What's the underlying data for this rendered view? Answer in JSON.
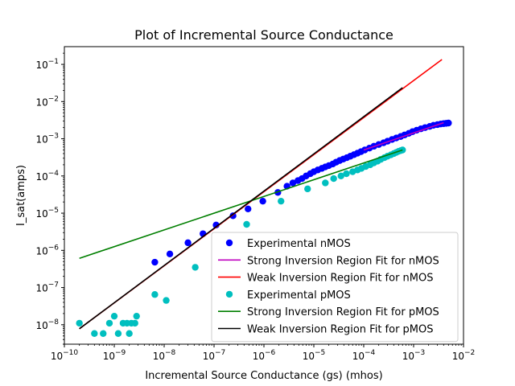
{
  "chart_data": {
    "type": "scatter",
    "title": "Plot of Incremental Source Conductance",
    "xlabel": "Incremental Source Conductance (gs) (mhos)",
    "ylabel": "I_sat(amps)",
    "xscale": "log",
    "yscale": "log",
    "xlim": [
      1e-10,
      0.01
    ],
    "ylim": [
      3e-09,
      0.3
    ],
    "x_tick_labels": [
      "10^-10",
      "10^-9",
      "10^-8",
      "10^-7",
      "10^-6",
      "10^-5",
      "10^-4",
      "10^-3",
      "10^-2"
    ],
    "y_tick_labels": [
      "10^-8",
      "10^-7",
      "10^-6",
      "10^-5",
      "10^-4",
      "10^-3",
      "10^-2",
      "10^-1"
    ],
    "grid": false,
    "legend_position": "lower-right",
    "series": [
      {
        "name": "Experimental nMOS",
        "kind": "scatter",
        "color": "#0000ff",
        "x": [
          6.5e-09,
          1.3e-08,
          3e-08,
          6e-08,
          1.1e-07,
          2.4e-07,
          4.8e-07,
          9.5e-07,
          1.9e-06,
          2.9e-06,
          3.8e-06,
          4.8e-06,
          5.8e-06,
          7e-06,
          8.5e-06,
          1e-05,
          1.2e-05,
          1.45e-05,
          1.7e-05,
          2e-05,
          2.4e-05,
          2.8e-05,
          3.3e-05,
          3.9e-05,
          4.6e-05,
          5.4e-05,
          6.4e-05,
          7.5e-05,
          8.8e-05,
          0.000105,
          0.00013,
          0.00016,
          0.0002,
          0.00025,
          0.0003,
          0.00037,
          0.00045,
          0.00055,
          0.00066,
          0.0008,
          0.00095,
          0.00115,
          0.0014,
          0.0017,
          0.0021,
          0.0025,
          0.003,
          0.0035,
          0.004,
          0.0045,
          0.005
        ],
        "y": [
          4.8e-07,
          8e-07,
          1.6e-06,
          2.8e-06,
          4.8e-06,
          8.5e-06,
          1.3e-05,
          2.1e-05,
          3.6e-05,
          5.3e-05,
          6.5e-05,
          7.5e-05,
          8.5e-05,
          0.0001,
          0.000115,
          0.00013,
          0.000145,
          0.00016,
          0.000175,
          0.00019,
          0.00021,
          0.000235,
          0.00026,
          0.000285,
          0.00031,
          0.00034,
          0.000375,
          0.00041,
          0.00045,
          0.0005,
          0.00056,
          0.00063,
          0.0007,
          0.00078,
          0.00086,
          0.00096,
          0.00105,
          0.00115,
          0.00127,
          0.0014,
          0.00155,
          0.0017,
          0.00185,
          0.002,
          0.00215,
          0.0023,
          0.0024,
          0.0025,
          0.00255,
          0.0026,
          0.00265
        ]
      },
      {
        "name": "Strong Inversion Region Fit for nMOS",
        "kind": "line",
        "color": "#bf00bf",
        "x": [
          0.0001,
          0.004
        ],
        "y": [
          0.0005,
          0.0027
        ]
      },
      {
        "name": "Weak Inversion Region Fit for nMOS",
        "kind": "line",
        "color": "#ff0000",
        "x": [
          2e-10,
          0.0037
        ],
        "y": [
          7.8e-09,
          0.135
        ]
      },
      {
        "name": "Experimental pMOS",
        "kind": "scatter",
        "color": "#00bfbf",
        "x": [
          2e-10,
          4e-10,
          6e-10,
          8e-10,
          1e-09,
          1.2e-09,
          1.5e-09,
          1.8e-09,
          2e-09,
          2.2e-09,
          2.6e-09,
          2.8e-09,
          6.5e-09,
          1.1e-08,
          4.2e-08,
          4.5e-07,
          2.2e-06,
          7.5e-06,
          1.7e-05,
          2.5e-05,
          3.5e-05,
          4.5e-05,
          6e-05,
          7.5e-05,
          9e-05,
          0.00011,
          0.000135,
          0.00016,
          0.00019,
          0.00022,
          0.00026,
          0.0003,
          0.00035,
          0.0004,
          0.00045,
          0.0005,
          0.00055,
          0.0006
        ],
        "y": [
          1.1e-08,
          5.8e-09,
          5.8e-09,
          1.1e-08,
          1.7e-08,
          5.8e-09,
          1.1e-08,
          1.1e-08,
          5.8e-09,
          1.1e-08,
          1.1e-08,
          1.7e-08,
          6.5e-08,
          4.5e-08,
          3.5e-07,
          5e-06,
          2.1e-05,
          4.5e-05,
          6.5e-05,
          8.5e-05,
          0.0001,
          0.000115,
          0.00013,
          0.000145,
          0.00016,
          0.00018,
          0.0002,
          0.000225,
          0.00025,
          0.00028,
          0.00031,
          0.00034,
          0.00037,
          0.0004,
          0.00043,
          0.00046,
          0.00048,
          0.0005
        ]
      },
      {
        "name": "Strong Inversion Region Fit for pMOS",
        "kind": "line",
        "color": "#007f00",
        "x": [
          2e-10,
          0.0006
        ],
        "y": [
          6.1e-07,
          0.0005
        ]
      },
      {
        "name": "Weak Inversion Region Fit for pMOS",
        "kind": "line",
        "color": "#000000",
        "x": [
          2e-10,
          0.0006
        ],
        "y": [
          7.8e-09,
          0.0236
        ]
      }
    ]
  }
}
